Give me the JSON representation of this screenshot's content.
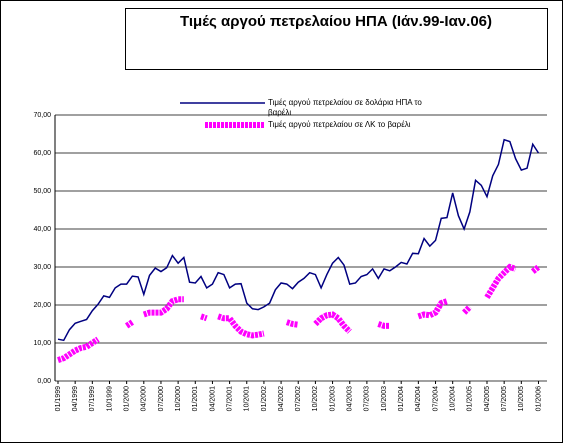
{
  "chart_data": {
    "type": "line",
    "title": "Τιμές αργού πετρελαίου  ΗΠΑ (Ιάν.99-Ιαν.06)",
    "categories": [
      "01/1999",
      null,
      null,
      "04/1999",
      null,
      null,
      "07/1999",
      null,
      null,
      "10/1999",
      null,
      null,
      "01/2000",
      null,
      null,
      "04/2000",
      null,
      null,
      "07/2000",
      null,
      null,
      "10/2000",
      null,
      null,
      "01/2001",
      null,
      null,
      "04/2001",
      null,
      null,
      "07/2001",
      null,
      null,
      "10/2001",
      null,
      null,
      "01/2002",
      null,
      null,
      "04/2002",
      null,
      null,
      "07/2002",
      null,
      null,
      "10/2002",
      null,
      null,
      "01/2003",
      null,
      null,
      "04/2003",
      null,
      null,
      "07/2003",
      null,
      null,
      "10/2003",
      null,
      null,
      "01/2004",
      null,
      null,
      "04/2004",
      null,
      null,
      "07/2004",
      null,
      null,
      "10/2004",
      null,
      null,
      "01/2005",
      null,
      null,
      "04/2005",
      null,
      null,
      "07/2005",
      null,
      null,
      "10/2005",
      null,
      null,
      "01/2006"
    ],
    "series": [
      {
        "name": "Τιμές αργού πετρελαίου σε δολάρια ΗΠΑ το βαρέλι",
        "color": "#000080",
        "values": [
          11.0,
          10.7,
          13.5,
          15.2,
          15.7,
          16.2,
          18.5,
          20.2,
          22.4,
          22.0,
          24.5,
          25.5,
          25.5,
          27.6,
          27.4,
          22.8,
          27.8,
          29.7,
          28.8,
          29.8,
          33.0,
          31.0,
          32.5,
          26.0,
          25.8,
          27.5,
          24.5,
          25.5,
          28.5,
          28.0,
          24.5,
          25.5,
          25.6,
          20.5,
          19.0,
          18.8,
          19.5,
          20.5,
          24.0,
          25.8,
          25.5,
          24.3,
          26.0,
          27.0,
          28.5,
          28.0,
          24.5,
          28.0,
          31.0,
          32.5,
          30.5,
          25.5,
          25.8,
          27.5,
          28.0,
          29.5,
          27.0,
          29.5,
          29.0,
          30.0,
          31.2,
          30.8,
          33.6,
          33.5,
          37.5,
          35.5,
          37.0,
          42.8,
          43.0,
          49.5,
          43.5,
          40.0,
          44.5,
          52.8,
          51.5,
          48.5,
          54.0,
          57.0,
          63.5,
          63.0,
          58.5,
          55.5,
          56.0,
          62.3,
          60.0
        ]
      },
      {
        "name": "Τιμές αργού πετρελαίου σε ΛΚ το βαρέλι",
        "color": "#ff00ff",
        "values": [
          5.5,
          6.0,
          7.0,
          8.0,
          8.7,
          9.0,
          10.0,
          11.0,
          null,
          null,
          null,
          null,
          14.5,
          15.5,
          null,
          17.5,
          18.0,
          18.0,
          18.0,
          19.0,
          21.0,
          21.5,
          21.5,
          null,
          null,
          17.0,
          16.5,
          null,
          17.0,
          16.5,
          16.5,
          14.5,
          13.0,
          12.3,
          12.0,
          12.2,
          12.5,
          null,
          null,
          null,
          15.5,
          15.0,
          14.8,
          null,
          null,
          15.0,
          16.5,
          17.3,
          17.5,
          16.5,
          14.5,
          13.0,
          null,
          null,
          null,
          null,
          15.0,
          14.5,
          14.5,
          null,
          null,
          null,
          null,
          17.0,
          17.5,
          17.3,
          18.0,
          20.5,
          21.0,
          null,
          null,
          18.0,
          19.5,
          null,
          null,
          22.0,
          24.5,
          27.0,
          28.5,
          30.0,
          29.5,
          null,
          null,
          28.8,
          30.0
        ]
      }
    ],
    "ylim": [
      0,
      70
    ],
    "yticks": [
      {
        "value": 0,
        "label": "0,00"
      },
      {
        "value": 10,
        "label": "10,00"
      },
      {
        "value": 20,
        "label": "20,00"
      },
      {
        "value": 30,
        "label": "30,00"
      },
      {
        "value": 40,
        "label": "40,00"
      },
      {
        "value": 50,
        "label": "50,00"
      },
      {
        "value": 60,
        "label": "60,00"
      },
      {
        "value": 70,
        "label": "70,00"
      }
    ],
    "grid": true
  }
}
